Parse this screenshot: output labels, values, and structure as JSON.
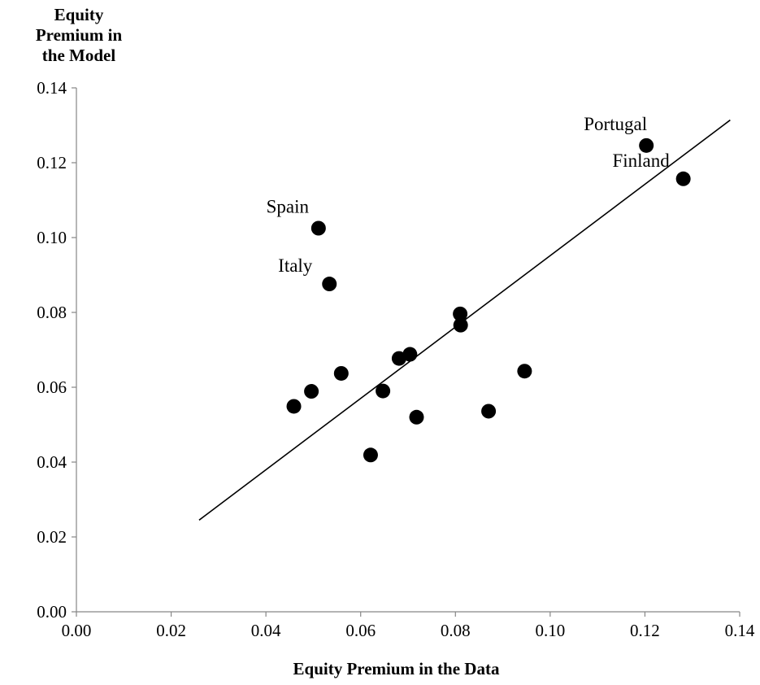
{
  "chart_data": {
    "type": "scatter",
    "xlabel": "Equity Premium in the Data",
    "ylabel_lines": [
      "Equity",
      "Premium in",
      "the Model"
    ],
    "xlim": [
      0,
      0.14
    ],
    "ylim": [
      0,
      0.14
    ],
    "x_ticks": [
      "0.00",
      "0.02",
      "0.04",
      "0.06",
      "0.08",
      "0.10",
      "0.12",
      "0.14"
    ],
    "y_ticks": [
      "0.00",
      "0.02",
      "0.04",
      "0.06",
      "0.08",
      "0.10",
      "0.12",
      "0.14"
    ],
    "grid": false,
    "points": [
      {
        "x": 0.0459,
        "y": 0.0549
      },
      {
        "x": 0.0496,
        "y": 0.0589
      },
      {
        "x": 0.0511,
        "y": 0.1025,
        "label": "Spain"
      },
      {
        "x": 0.0534,
        "y": 0.0876,
        "label": "Italy"
      },
      {
        "x": 0.0559,
        "y": 0.0637
      },
      {
        "x": 0.0621,
        "y": 0.0419
      },
      {
        "x": 0.0647,
        "y": 0.059
      },
      {
        "x": 0.0681,
        "y": 0.0677
      },
      {
        "x": 0.0704,
        "y": 0.0688
      },
      {
        "x": 0.0718,
        "y": 0.052
      },
      {
        "x": 0.081,
        "y": 0.0796
      },
      {
        "x": 0.0811,
        "y": 0.0766
      },
      {
        "x": 0.087,
        "y": 0.0536
      },
      {
        "x": 0.0946,
        "y": 0.0643
      },
      {
        "x": 0.1203,
        "y": 0.1246,
        "label": "Portugal"
      },
      {
        "x": 0.1281,
        "y": 0.1157,
        "label": "Finland"
      }
    ],
    "fit_line": {
      "x": [
        0.0259,
        0.138
      ],
      "y": [
        0.0245,
        0.1314
      ]
    }
  }
}
